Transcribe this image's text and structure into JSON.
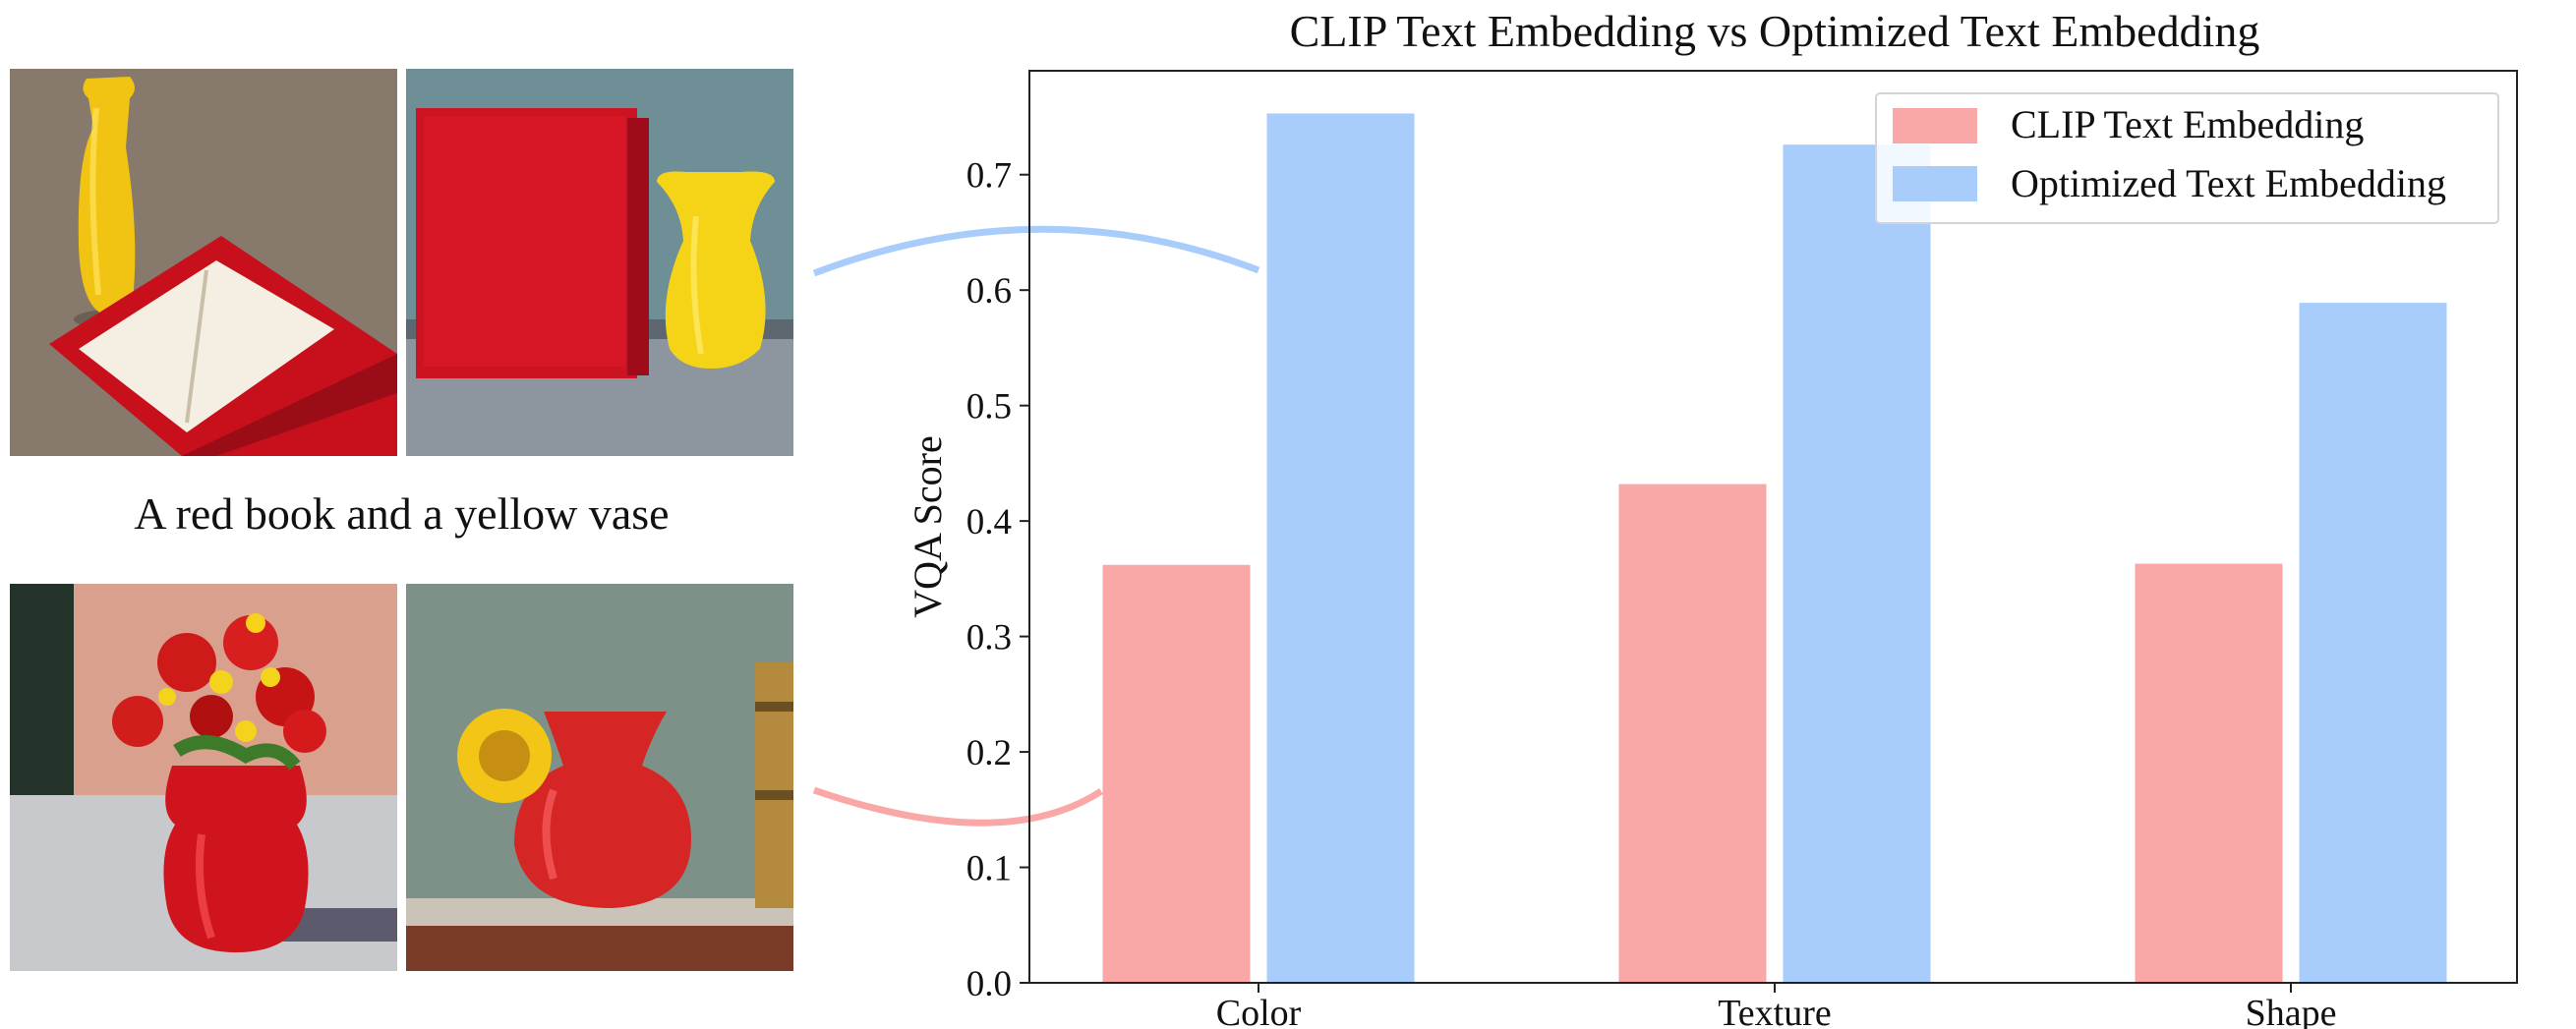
{
  "figure": {
    "caption": "A red book and a yellow vase"
  },
  "colors": {
    "clip": "#f9a7a7",
    "optimized": "#a9cdfb"
  },
  "chart_data": {
    "type": "bar",
    "title": "CLIP Text Embedding vs Optimized Text Embedding",
    "xlabel": "",
    "ylabel": "VQA Score",
    "categories": [
      "Color",
      "Texture",
      "Shape"
    ],
    "series": [
      {
        "name": "CLIP Text Embedding",
        "values": [
          0.362,
          0.432,
          0.363
        ]
      },
      {
        "name": "Optimized Text Embedding",
        "values": [
          0.753,
          0.726,
          0.589
        ]
      }
    ],
    "ylim": [
      0,
      0.79
    ],
    "yticks": [
      "0.0",
      "0.1",
      "0.2",
      "0.3",
      "0.4",
      "0.5",
      "0.6",
      "0.7"
    ],
    "legend_position": "top-right",
    "grid": false
  }
}
